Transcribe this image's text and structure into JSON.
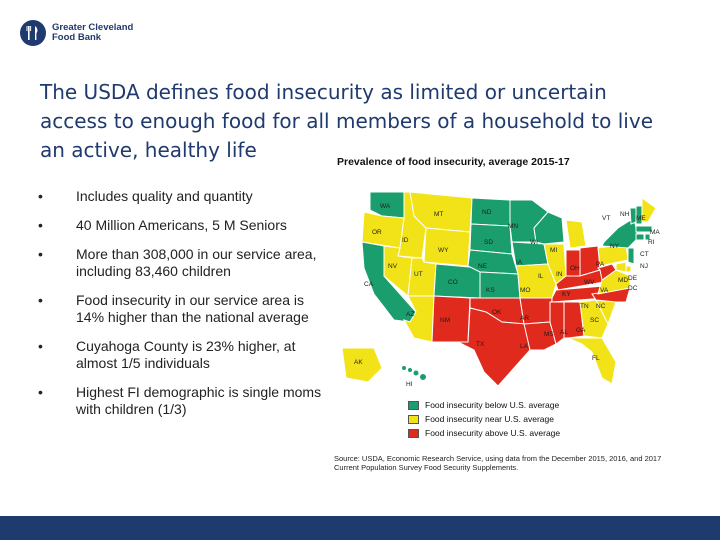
{
  "logo": {
    "line1": "Greater Cleveland",
    "line2": "Food Bank"
  },
  "title": "The USDA defines food insecurity as limited or uncertain access to enough food for all members of a household to live an active, healthy life",
  "bullets": [
    "Includes quality and quantity",
    "40 Million Americans, 5 M Seniors",
    "More than 308,000 in our service area, including 83,460 children",
    "Food insecurity in our service area is 14% higher than the national average",
    "Cuyahoga County is 23% higher, at almost 1/5 individuals",
    "Highest FI demographic is single moms with children (1/3)"
  ],
  "bullet_symbol": "•",
  "map": {
    "title": "Prevalence of food insecurity, average 2015-17",
    "colors": {
      "below": "#1a9e6e",
      "near": "#f2e318",
      "above": "#e02a1e",
      "ocean": "#ffffff"
    },
    "states": {
      "WA": "WA",
      "OR": "OR",
      "CA": "CA",
      "ID": "ID",
      "NV": "NV",
      "MT": "MT",
      "WY": "WY",
      "UT": "UT",
      "AZ": "AZ",
      "CO": "CO",
      "NM": "NM",
      "ND": "ND",
      "SD": "SD",
      "NE": "NE",
      "KS": "KS",
      "OK": "OK",
      "TX": "TX",
      "MN": "MN",
      "IA": "IA",
      "MO": "MO",
      "AR": "AR",
      "LA": "LA",
      "WI": "WI",
      "IL": "IL",
      "MI": "MI",
      "IN": "IN",
      "OH": "OH",
      "KY": "KY",
      "TN": "TN",
      "MS": "MS",
      "AL": "AL",
      "GA": "GA",
      "FL": "FL",
      "SC": "SC",
      "NC": "NC",
      "VA": "VA",
      "WV": "WV",
      "PA": "PA",
      "NY": "NY",
      "VT": "VT",
      "NH": "NH",
      "ME": "ME",
      "MA": "MA",
      "RI": "RI",
      "CT": "CT",
      "NJ": "NJ",
      "DE": "DE",
      "MD": "MD",
      "DC": "DC",
      "AK": "AK",
      "HI": "HI"
    }
  },
  "legend": [
    {
      "label": "Food insecurity below U.S. average",
      "color": "#1a9e6e"
    },
    {
      "label": "Food insecurity near U.S. average",
      "color": "#f2e318"
    },
    {
      "label": "Food insecurity above U.S. average",
      "color": "#e02a1e"
    }
  ],
  "source": "Source: USDA, Economic Research Service, using data from the December 2015, 2016, and 2017 Current Population Survey Food Security Supplements.",
  "footer_color": "#1f3a6e"
}
